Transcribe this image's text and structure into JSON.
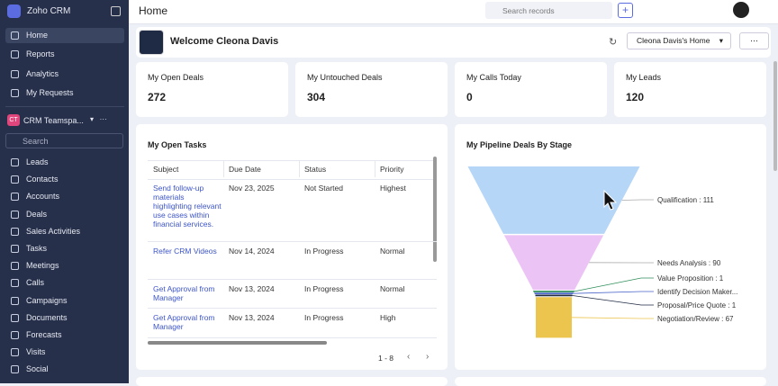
{
  "sidebar": {
    "brand": "Zoho CRM",
    "nav": [
      "Home",
      "Reports",
      "Analytics",
      "My Requests"
    ],
    "teamspace": {
      "badge": "CT",
      "name": "CRM Teamspa..."
    },
    "search_placeholder": "Search",
    "modules": [
      "Leads",
      "Contacts",
      "Accounts",
      "Deals",
      "Sales Activities",
      "Tasks",
      "Meetings",
      "Calls",
      "Campaigns",
      "Documents",
      "Forecasts",
      "Visits",
      "Social"
    ]
  },
  "topbar": {
    "title": "Home",
    "search_placeholder": "Search records"
  },
  "welcome": {
    "text": "Welcome Cleona Davis",
    "home_select": "Cleona Davis's Home"
  },
  "stats": [
    {
      "label": "My Open Deals",
      "value": 272
    },
    {
      "label": "My Untouched Deals",
      "value": 304
    },
    {
      "label": "My Calls Today",
      "value": 0
    },
    {
      "label": "My Leads",
      "value": 120
    }
  ],
  "tasks": {
    "title": "My Open Tasks",
    "columns": [
      "Subject",
      "Due Date",
      "Status",
      "Priority"
    ],
    "rows": [
      [
        "Send follow-up materials highlighting relevant use cases within financial services.",
        "Nov 23, 2025",
        "Not Started",
        "Highest"
      ],
      [
        "Refer CRM Videos",
        "Nov 14, 2024",
        "In Progress",
        "Normal"
      ],
      [
        "Get Approval from Manager",
        "Nov 13, 2024",
        "In Progress",
        "Normal"
      ],
      [
        "Get Approval from Manager",
        "Nov 13, 2024",
        "In Progress",
        "High"
      ]
    ],
    "pagination": "1 - 8"
  },
  "chart_data": {
    "type": "funnel",
    "title": "My Pipeline Deals By Stage",
    "values": [
      111,
      90,
      1,
      1,
      1,
      67
    ],
    "value_labels": [
      "Qualification : 111",
      "Needs Analysis : 90",
      "Value Proposition : 1",
      "Identify Decision Maker...",
      "Proposal/Price Quote : 1",
      "Negotiation/Review : 67"
    ],
    "colors": [
      "#b5d6f6",
      "#ecc3f5",
      "#2f8f5b",
      "#4763c9",
      "#1f2a44",
      "#ecc54f"
    ]
  }
}
